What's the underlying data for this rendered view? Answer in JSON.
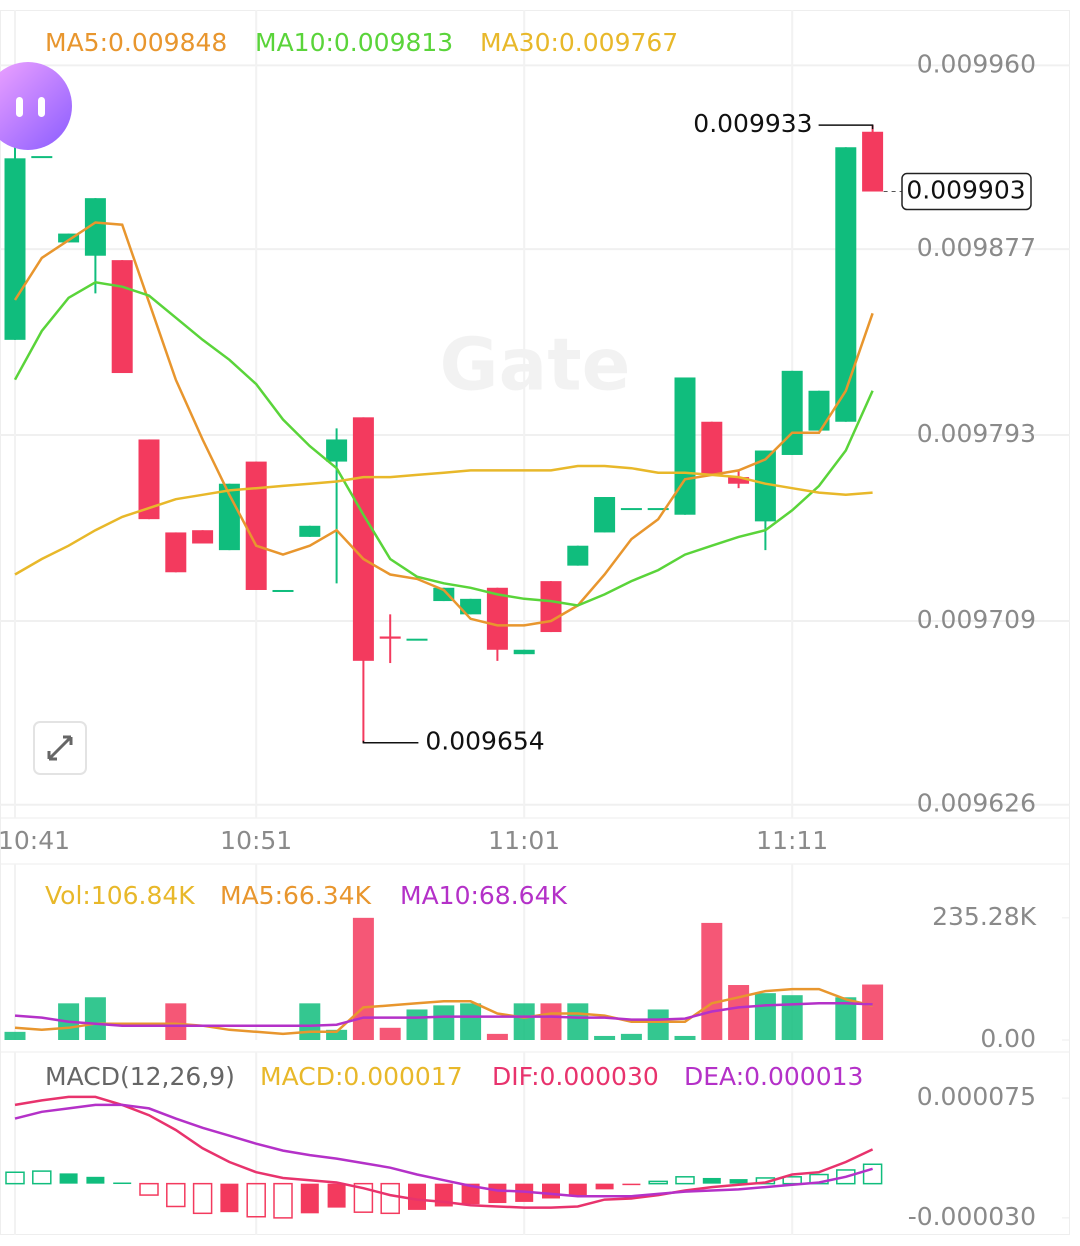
{
  "watermark": "Gate",
  "chart_data": [
    {
      "type": "candlestick",
      "categories": [
        "10:41",
        null,
        null,
        null,
        null,
        null,
        null,
        null,
        null,
        "10:51",
        null,
        null,
        null,
        null,
        null,
        null,
        null,
        null,
        null,
        "11:01",
        null,
        null,
        null,
        null,
        null,
        null,
        null,
        null,
        null,
        "11:11",
        null,
        null,
        null
      ],
      "open": [
        0.009836,
        0.009919,
        0.00988,
        0.009874,
        0.009872,
        0.009791,
        0.009749,
        0.00975,
        0.009741,
        0.009781,
        0.009723,
        0.009747,
        0.009781,
        0.009801,
        0.009702,
        0.009701,
        0.009718,
        0.009712,
        0.009724,
        0.009694,
        0.009727,
        0.009734,
        0.009749,
        0.00976,
        0.00976,
        0.009757,
        0.009799,
        0.009774,
        0.009754,
        0.009784,
        0.009795,
        0.009799,
        0.00993
      ],
      "high": [
        0.009931,
        0.009919,
        0.009884,
        0.0099,
        0.009872,
        0.009791,
        0.009749,
        0.00975,
        0.009771,
        0.009781,
        0.009723,
        0.009752,
        0.009796,
        0.009801,
        0.009712,
        0.009701,
        0.009724,
        0.009719,
        0.009724,
        0.009696,
        0.009727,
        0.009743,
        0.009765,
        0.00976,
        0.00976,
        0.009819,
        0.009799,
        0.009777,
        0.009786,
        0.009822,
        0.009813,
        0.009923,
        0.009933
      ],
      "low": [
        0.009836,
        0.009919,
        0.00988,
        0.009857,
        0.009821,
        0.009755,
        0.009731,
        0.009744,
        0.009741,
        0.009723,
        0.009723,
        0.009747,
        0.009726,
        0.009654,
        0.00969,
        0.009701,
        0.009718,
        0.009712,
        0.009691,
        0.009694,
        0.009704,
        0.009734,
        0.009749,
        0.00976,
        0.00976,
        0.009757,
        0.009775,
        0.009769,
        0.009741,
        0.009784,
        0.009795,
        0.009799,
        0.009903
      ],
      "close": [
        0.009918,
        0.009919,
        0.009884,
        0.0099,
        0.009821,
        0.009755,
        0.009731,
        0.009744,
        0.009771,
        0.009723,
        0.009723,
        0.009752,
        0.009791,
        0.009691,
        0.009701,
        0.009701,
        0.009724,
        0.009719,
        0.009696,
        0.009696,
        0.009704,
        0.009743,
        0.009765,
        0.00976,
        0.00976,
        0.009819,
        0.009775,
        0.009771,
        0.009786,
        0.009822,
        0.009813,
        0.009923,
        0.009903
      ],
      "up_color": "#10bd7d",
      "down_color": "#f33a5e",
      "series": [
        {
          "name": "MA5:0.009848",
          "color": "#e8962e",
          "values": [
            0.009854,
            0.009873,
            0.009881,
            0.009889,
            0.009888,
            0.009853,
            0.009818,
            0.009791,
            0.009766,
            0.009743,
            0.009739,
            0.009743,
            0.00975,
            0.009737,
            0.00973,
            0.009728,
            0.009723,
            0.00971,
            0.009707,
            0.009707,
            0.009709,
            0.009716,
            0.00973,
            0.009746,
            0.009755,
            0.009773,
            0.009775,
            0.009777,
            0.009782,
            0.009794,
            0.009794,
            0.009813,
            0.009848
          ]
        },
        {
          "name": "MA10:0.009813",
          "color": "#5ad43a",
          "values": [
            0.009818,
            0.00984,
            0.009855,
            0.009862,
            0.00986,
            0.009856,
            0.009846,
            0.009836,
            0.009827,
            0.009816,
            0.0098,
            0.009788,
            0.009778,
            0.009757,
            0.009737,
            0.009729,
            0.009726,
            0.009724,
            0.009721,
            0.009719,
            0.009718,
            0.009716,
            0.009721,
            0.009727,
            0.009732,
            0.009739,
            0.009743,
            0.009747,
            0.00975,
            0.009759,
            0.00977,
            0.009786,
            0.009813
          ]
        },
        {
          "name": "MA30:0.009767",
          "color": "#e8b82a",
          "values": [
            0.00973,
            0.009737,
            0.009743,
            0.00975,
            0.009756,
            0.00976,
            0.009764,
            0.009766,
            0.009768,
            0.009769,
            0.00977,
            0.009771,
            0.009772,
            0.009774,
            0.009774,
            0.009775,
            0.009776,
            0.009777,
            0.009777,
            0.009777,
            0.009777,
            0.009779,
            0.009779,
            0.009778,
            0.009776,
            0.009776,
            0.009775,
            0.009774,
            0.009771,
            0.009769,
            0.009767,
            0.009766,
            0.009767
          ]
        }
      ],
      "ylim": [
        0.00962,
        0.009985
      ],
      "yticks": [
        {
          "value": 0.00996,
          "label": "0.009960"
        },
        0.009877,
        0.009793,
        0.009709,
        0.009626
      ],
      "grid": true
    },
    {
      "type": "bar",
      "series": [
        {
          "name": "Vol:106.84K",
          "color": "#e8b82a",
          "values": [
            15700,
            0,
            70600,
            82300,
            0,
            0,
            70600,
            0,
            0,
            0,
            0,
            70600,
            19600,
            235280,
            23500,
            58800,
            66700,
            70600,
            11800,
            70600,
            70600,
            70600,
            7800,
            11800,
            58800,
            7800,
            225500,
            105900,
            90200,
            86300,
            0,
            82300,
            106840
          ]
        },
        {
          "name": "MA5:66.34K",
          "color": "#e8962e",
          "values": [
            23500,
            19600,
            23500,
            31400,
            31400,
            31400,
            31400,
            27500,
            19600,
            15700,
            11800,
            15700,
            15700,
            62700,
            66700,
            70600,
            74500,
            74500,
            51000,
            43100,
            51000,
            51000,
            47000,
            35300,
            35300,
            35300,
            70600,
            82300,
            94100,
            98000,
            98000,
            78400,
            66340
          ]
        },
        {
          "name": "MA10:68.64K",
          "color": "#b431c8",
          "values": [
            47000,
            43100,
            35300,
            31400,
            27500,
            27500,
            27500,
            27500,
            27500,
            27500,
            27500,
            27500,
            29400,
            43100,
            43100,
            43100,
            45100,
            45100,
            45100,
            45100,
            45100,
            43100,
            43100,
            39200,
            39200,
            41200,
            54900,
            62700,
            66700,
            68600,
            70600,
            70600,
            68640
          ]
        }
      ],
      "ylim": [
        0,
        260000
      ],
      "yticks": [
        {
          "value": 235280,
          "label": "235.28K"
        },
        {
          "value": 0,
          "label": "0.00"
        }
      ]
    },
    {
      "type": "macd",
      "title": "MACD(12,26,9)",
      "series": [
        {
          "name": "MACD:0.000017",
          "color": "#e8b82a",
          "values": [
            1e-05,
            1.1e-05,
            9e-06,
            6e-06,
            1e-06,
            -1e-05,
            -2e-05,
            -2.6e-05,
            -2.5e-05,
            -2.9e-05,
            -3e-05,
            -2.6e-05,
            -2.1e-05,
            -2.5e-05,
            -2.6e-05,
            -2.3e-05,
            -2e-05,
            -1.8e-05,
            -1.7e-05,
            -1.6e-05,
            -1.3e-05,
            -1.1e-05,
            -5e-06,
            -1e-06,
            2e-06,
            6e-06,
            5e-06,
            4e-06,
            5e-06,
            6e-06,
            8e-06,
            1.2e-05,
            1.7e-05
          ]
        },
        {
          "name": "DIF:0.000030",
          "color": "#e8336d",
          "values": [
            6.9e-05,
            7.3e-05,
            7.6e-05,
            7.6e-05,
            6.9e-05,
            6e-05,
            4.7e-05,
            3.1e-05,
            1.9e-05,
            1e-05,
            5e-06,
            3e-06,
            1e-06,
            -4e-06,
            -1e-05,
            -1.4e-05,
            -1.6e-05,
            -1.9e-05,
            -2e-05,
            -2.1e-05,
            -2.1e-05,
            -2e-05,
            -1.4e-05,
            -1.3e-05,
            -1e-05,
            -6e-06,
            -3e-06,
            -1e-06,
            1e-06,
            8e-06,
            1e-05,
            1.9e-05,
            3e-05
          ]
        },
        {
          "name": "DEA:0.000013",
          "color": "#b431c8",
          "values": [
            5.7e-05,
            6.3e-05,
            6.6e-05,
            6.9e-05,
            6.9e-05,
            6.6e-05,
            5.7e-05,
            4.9e-05,
            4.2e-05,
            3.5e-05,
            2.9e-05,
            2.5e-05,
            2.2e-05,
            1.8e-05,
            1.4e-05,
            8e-06,
            3e-06,
            -2e-06,
            -6e-06,
            -7e-06,
            -9e-06,
            -1.1e-05,
            -1.1e-05,
            -1.1e-05,
            -9e-06,
            -7e-06,
            -6e-06,
            -5e-06,
            -3e-06,
            -1e-06,
            1e-06,
            6e-06,
            1.3e-05
          ]
        }
      ],
      "ylim": [
        -4.5e-05,
        0.000104
      ],
      "yticks": [
        7.5e-05,
        {
          "value": -3e-05,
          "label": "-0.000030"
        }
      ]
    }
  ]
}
